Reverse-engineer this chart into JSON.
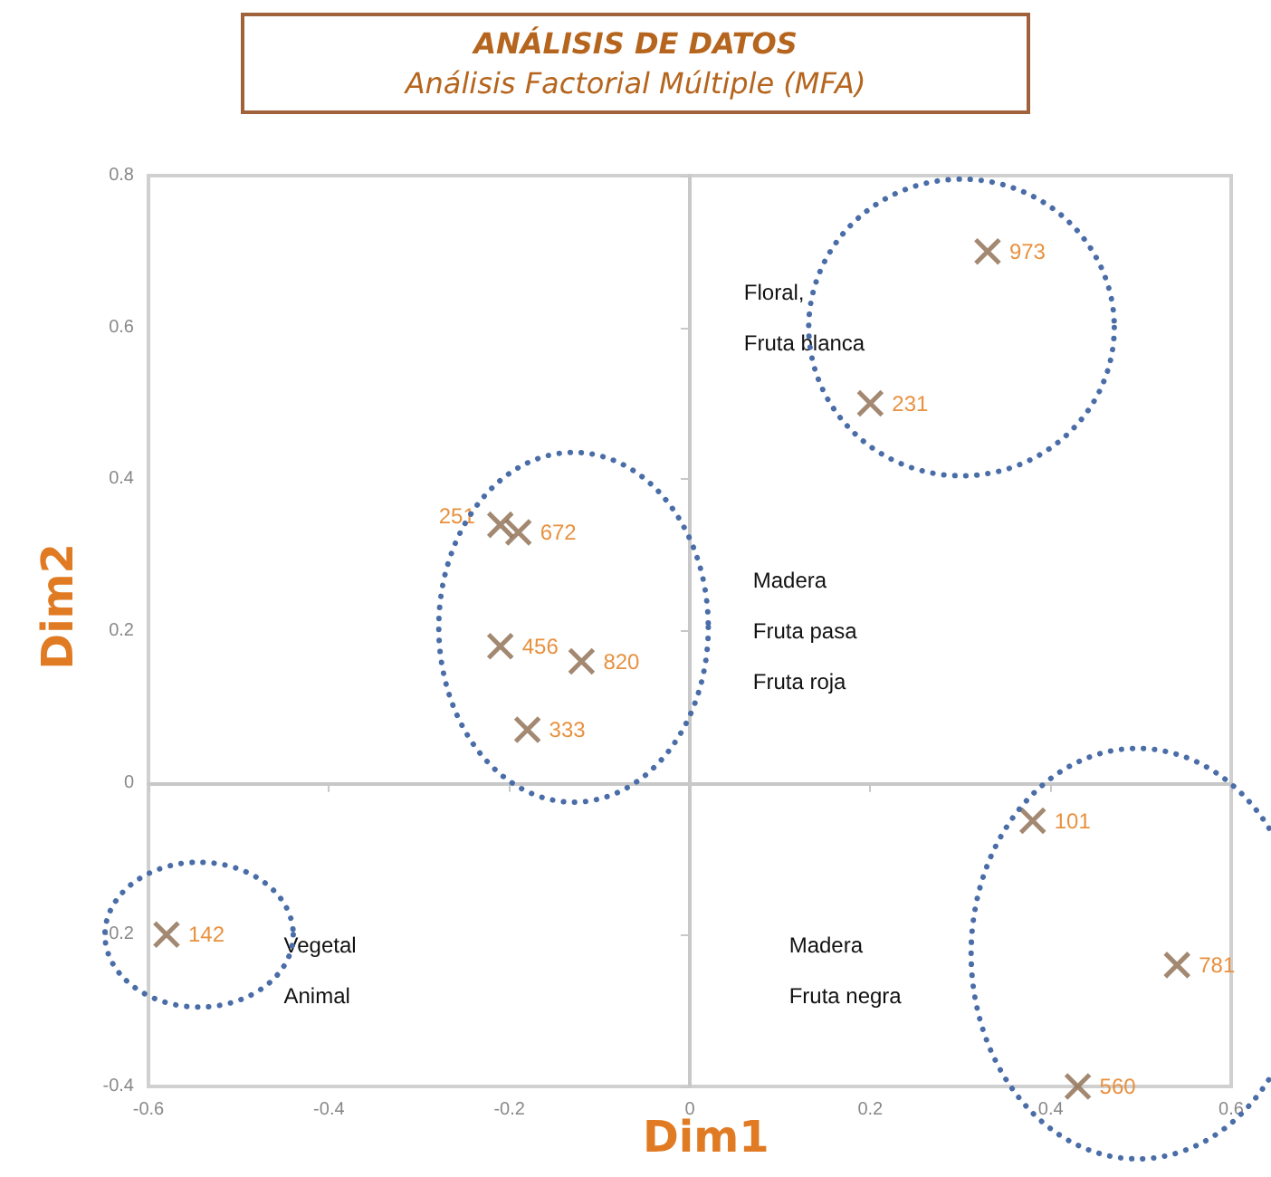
{
  "chart_data": {
    "type": "scatter",
    "title": "ANÁLISIS DE DATOS",
    "subtitle": "Análisis Factorial Múltiple (MFA)",
    "xlabel": "Dim1",
    "ylabel": "Dim2",
    "xlim": [
      -0.6,
      0.6
    ],
    "xticks": [
      -0.6,
      -0.4,
      -0.2,
      0,
      0.2,
      0.4,
      0.6
    ],
    "ylim": [
      -0.4,
      0.8
    ],
    "yticks": [
      -0.4,
      -0.2,
      0,
      0.2,
      0.4,
      0.6,
      0.8
    ],
    "marker": "cross",
    "series": [
      {
        "color": "#8c6a4f",
        "x": [
          0.33,
          0.2
        ],
        "values": [
          0.7,
          0.5
        ]
      },
      {
        "color": "#8c6a4f",
        "x": [
          -0.21,
          -0.19,
          -0.21,
          -0.12,
          -0.18
        ],
        "values": [
          0.34,
          0.33,
          0.18,
          0.16,
          0.07
        ]
      },
      {
        "color": "#8c6a4f",
        "x": [
          -0.58
        ],
        "values": [
          -0.2
        ]
      },
      {
        "color": "#8c6a4f",
        "x": [
          0.38,
          0.54,
          0.43
        ],
        "values": [
          -0.05,
          -0.24,
          -0.4
        ]
      }
    ],
    "annotations": [
      {
        "text": "973",
        "x": 0.33,
        "y": 0.7
      },
      {
        "text": "231",
        "x": 0.2,
        "y": 0.5
      },
      {
        "text": "251",
        "x": -0.21,
        "y": 0.34
      },
      {
        "text": "672",
        "x": -0.19,
        "y": 0.33
      },
      {
        "text": "456",
        "x": -0.21,
        "y": 0.18
      },
      {
        "text": "820",
        "x": -0.12,
        "y": 0.16
      },
      {
        "text": "333",
        "x": -0.18,
        "y": 0.07
      },
      {
        "text": "142",
        "x": -0.58,
        "y": -0.2
      },
      {
        "text": "101",
        "x": 0.38,
        "y": -0.05
      },
      {
        "text": "781",
        "x": 0.54,
        "y": -0.24
      },
      {
        "text": "560",
        "x": 0.43,
        "y": -0.4
      },
      "Floral,\nFruta blanca",
      "Madera\nFruta pasa\nFruta roja",
      "Vegetal\nAnimal",
      "Madera\nFruta negra"
    ]
  }
}
